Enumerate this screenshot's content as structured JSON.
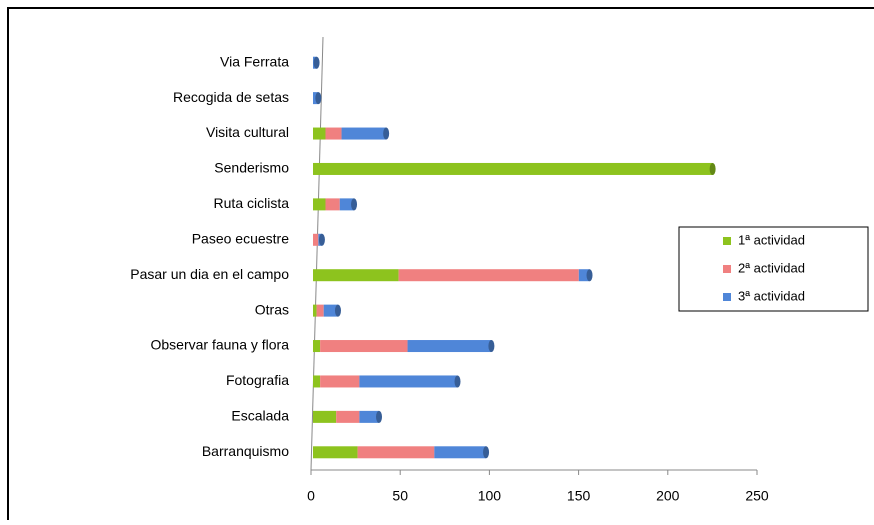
{
  "chart_data": {
    "type": "bar",
    "orientation": "horizontal",
    "stacked": true,
    "categories": [
      "Via Ferrata",
      "Recogida de setas",
      "Visita cultural",
      "Senderismo",
      "Ruta ciclista",
      "Paseo ecuestre",
      "Pasar un dia en el campo",
      "Otras",
      "Observar fauna y flora",
      "Fotografia",
      "Escalada",
      "Barranquismo"
    ],
    "series": [
      {
        "name": "1ª actividad",
        "color": "#8dc31e",
        "values": [
          0,
          0,
          7,
          224,
          7,
          0,
          48,
          2,
          4,
          4,
          13,
          25
        ]
      },
      {
        "name": "2ª actividad",
        "color": "#f08080",
        "values": [
          0,
          0,
          9,
          0,
          8,
          3,
          101,
          4,
          49,
          22,
          13,
          43
        ]
      },
      {
        "name": "3ª actividad",
        "color": "#4f86d8",
        "values": [
          2,
          3,
          25,
          0,
          8,
          2,
          6,
          8,
          47,
          55,
          11,
          29
        ]
      }
    ],
    "xlim": [
      0,
      250
    ],
    "xticks": [
      0,
      50,
      100,
      150,
      200,
      250
    ],
    "legend": "right"
  }
}
